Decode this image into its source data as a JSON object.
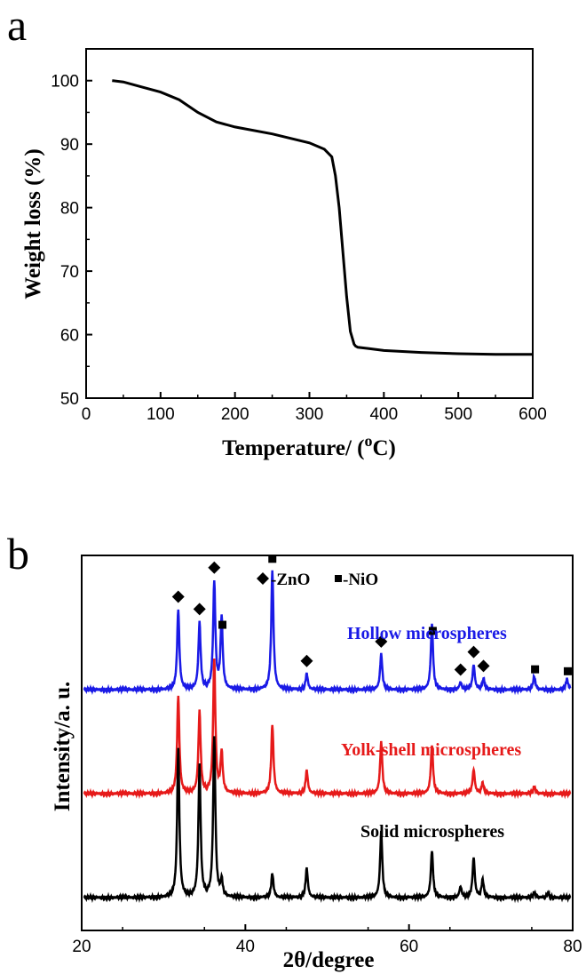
{
  "panels": {
    "a": {
      "letter": "a"
    },
    "b": {
      "letter": "b"
    }
  },
  "chart_data": [
    {
      "type": "line",
      "panel": "a",
      "xlabel": "Temperature/ (",
      "xlabel_sup": "o",
      "xlabel_end": "C)",
      "ylabel": "Weight loss (%)",
      "xlim": [
        0,
        600
      ],
      "ylim": [
        50,
        105
      ],
      "xticks": [
        0,
        100,
        200,
        300,
        400,
        500,
        600
      ],
      "yticks": [
        50,
        60,
        70,
        80,
        90,
        100
      ],
      "grid": false,
      "series": [
        {
          "color": "#000000",
          "x": [
            35,
            50,
            75,
            100,
            125,
            150,
            175,
            200,
            250,
            300,
            320,
            330,
            335,
            340,
            345,
            350,
            355,
            360,
            362,
            365,
            380,
            400,
            450,
            500,
            550,
            600
          ],
          "y": [
            100.0,
            99.8,
            99.0,
            98.2,
            97.0,
            95.0,
            93.5,
            92.7,
            91.6,
            90.2,
            89.2,
            88.0,
            85.0,
            80.0,
            73.0,
            66.0,
            60.5,
            58.5,
            58.2,
            58.0,
            57.8,
            57.5,
            57.2,
            57.0,
            56.9,
            56.9
          ]
        }
      ]
    },
    {
      "type": "line",
      "panel": "b",
      "xlabel": "2θ/degree",
      "ylabel": "Intensity/a. u.",
      "xlim": [
        20,
        80
      ],
      "xticks": [
        20,
        40,
        60,
        80
      ],
      "grid": false,
      "legend": {
        "zno": "-ZnO",
        "nio": "-NiO",
        "placement": "top"
      },
      "peaks": {
        "zno": [
          31.8,
          34.4,
          36.2,
          47.5,
          56.6,
          66.3,
          67.9,
          69.1
        ],
        "nio": [
          37.2,
          43.3,
          62.9,
          75.4,
          79.4
        ]
      },
      "series": [
        {
          "name": "Hollow microspheres",
          "color": "#1a1ae6",
          "baseline": 0,
          "peaks": [
            [
              31.8,
              90
            ],
            [
              34.4,
              75
            ],
            [
              36.2,
              120
            ],
            [
              37.1,
              80
            ],
            [
              43.3,
              135
            ],
            [
              47.5,
              18
            ],
            [
              56.6,
              40
            ],
            [
              62.8,
              75
            ],
            [
              66.3,
              8
            ],
            [
              67.9,
              28
            ],
            [
              69.1,
              12
            ],
            [
              75.3,
              15
            ],
            [
              79.3,
              12
            ]
          ]
        },
        {
          "name": "Yolk-shell microspheres",
          "color": "#e61a1a",
          "baseline": 0,
          "peaks": [
            [
              31.8,
              110
            ],
            [
              34.4,
              92
            ],
            [
              36.2,
              150
            ],
            [
              37.1,
              45
            ],
            [
              43.3,
              78
            ],
            [
              47.5,
              26
            ],
            [
              56.6,
              58
            ],
            [
              62.8,
              55
            ],
            [
              67.9,
              27
            ],
            [
              69.0,
              12
            ],
            [
              75.3,
              8
            ]
          ]
        },
        {
          "name": "Solid microspheres",
          "color": "#000000",
          "baseline": 0,
          "peaks": [
            [
              31.8,
              168
            ],
            [
              34.4,
              148
            ],
            [
              36.2,
              180
            ],
            [
              37.1,
              18
            ],
            [
              43.3,
              27
            ],
            [
              47.5,
              33
            ],
            [
              56.6,
              74
            ],
            [
              62.8,
              53
            ],
            [
              66.3,
              12
            ],
            [
              67.9,
              45
            ],
            [
              69.0,
              20
            ],
            [
              75.3,
              6
            ],
            [
              77.0,
              5
            ]
          ]
        }
      ]
    }
  ]
}
